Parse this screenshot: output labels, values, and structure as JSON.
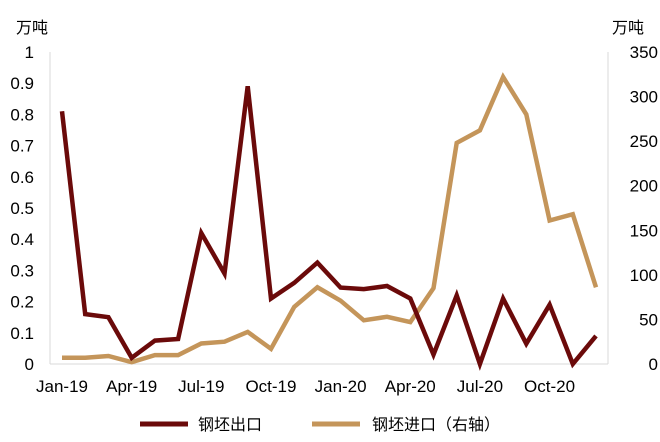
{
  "chart_data": {
    "type": "line",
    "left_unit": "万吨",
    "right_unit": "万吨",
    "x": [
      "Jan-19",
      "Feb-19",
      "Mar-19",
      "Apr-19",
      "May-19",
      "Jun-19",
      "Jul-19",
      "Aug-19",
      "Sep-19",
      "Oct-19",
      "Nov-19",
      "Dec-19",
      "Jan-20",
      "Feb-20",
      "Mar-20",
      "Apr-20",
      "May-20",
      "Jun-20",
      "Jul-20",
      "Aug-20",
      "Sep-20",
      "Oct-20",
      "Nov-20",
      "Dec-20"
    ],
    "x_tick_labels": [
      "Jan-19",
      "Apr-19",
      "Jul-19",
      "Oct-19",
      "Jan-20",
      "Apr-20",
      "Jul-20",
      "Oct-20"
    ],
    "x_tick_indices": [
      0,
      3,
      6,
      9,
      12,
      15,
      18,
      21
    ],
    "y_left": {
      "min": 0,
      "max": 1,
      "ticks": [
        "0",
        "0.1",
        "0.2",
        "0.3",
        "0.4",
        "0.5",
        "0.6",
        "0.7",
        "0.8",
        "0.9",
        "1"
      ]
    },
    "y_right": {
      "min": 0,
      "max": 350,
      "ticks": [
        "0",
        "50",
        "100",
        "150",
        "200",
        "250",
        "300",
        "350"
      ]
    },
    "series": [
      {
        "name": "钢坯出口",
        "axis": "left",
        "color": "#6b0a0a",
        "values": [
          0.81,
          0.16,
          0.15,
          0.02,
          0.075,
          0.08,
          0.42,
          0.29,
          0.89,
          0.21,
          0.26,
          0.325,
          0.245,
          0.24,
          0.25,
          0.21,
          0.03,
          0.22,
          0.0,
          0.21,
          0.065,
          0.19,
          0.0,
          0.09
        ]
      },
      {
        "name": "钢坯进口（右轴）",
        "axis": "right",
        "color": "#c4955a",
        "values": [
          7,
          7,
          9,
          2,
          10,
          10,
          23,
          25,
          36,
          17,
          64,
          86,
          71,
          49,
          53,
          47,
          85,
          248,
          262,
          322,
          280,
          161,
          168,
          86
        ]
      }
    ],
    "legend_position": "bottom"
  }
}
